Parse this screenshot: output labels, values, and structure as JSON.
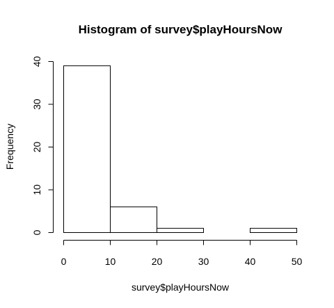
{
  "chart_data": {
    "type": "bar",
    "title": "Histogram of survey$playHoursNow",
    "xlabel": "survey$playHoursNow",
    "ylabel": "Frequency",
    "bins": [
      {
        "start": 0,
        "end": 10,
        "count": 39
      },
      {
        "start": 10,
        "end": 20,
        "count": 6
      },
      {
        "start": 20,
        "end": 30,
        "count": 1
      },
      {
        "start": 30,
        "end": 40,
        "count": 0
      },
      {
        "start": 40,
        "end": 50,
        "count": 1
      }
    ],
    "xlim": [
      0,
      50
    ],
    "ylim": [
      0,
      40
    ],
    "xticks": [
      0,
      10,
      20,
      30,
      40,
      50
    ],
    "yticks": [
      0,
      10,
      20,
      30,
      40
    ],
    "grid": false,
    "bar_fill": "#ffffff",
    "bar_stroke": "#000000"
  }
}
